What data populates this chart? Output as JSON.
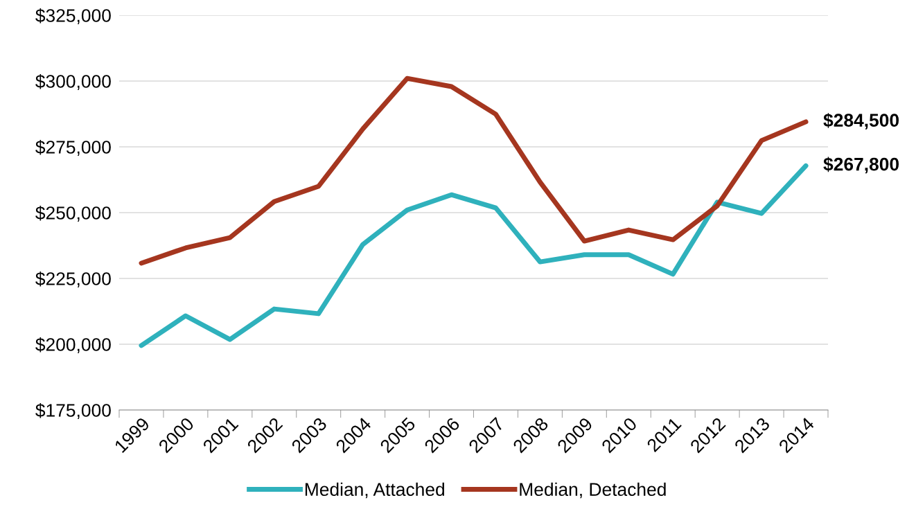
{
  "chart_data": {
    "type": "line",
    "categories": [
      "1999",
      "2000",
      "2001",
      "2002",
      "2003",
      "2004",
      "2005",
      "2006",
      "2007",
      "2008",
      "2009",
      "2010",
      "2011",
      "2012",
      "2013",
      "2014"
    ],
    "series": [
      {
        "name": "Median, Attached",
        "color": "#2fb1bc",
        "values": [
          199500,
          210800,
          201800,
          213400,
          211600,
          237900,
          251000,
          256800,
          251800,
          231300,
          234000,
          234000,
          226600,
          254000,
          249700,
          267800
        ]
      },
      {
        "name": "Median, Detached",
        "color": "#a5361f",
        "values": [
          230800,
          236600,
          240500,
          254200,
          260000,
          281800,
          301000,
          297900,
          287400,
          261600,
          239200,
          243400,
          239700,
          252600,
          277400,
          284500
        ]
      }
    ],
    "ylim": [
      175000,
      325000
    ],
    "yticks": [
      {
        "value": 175000,
        "label": "$175,000"
      },
      {
        "value": 200000,
        "label": "$200,000"
      },
      {
        "value": 225000,
        "label": "$225,000"
      },
      {
        "value": 250000,
        "label": "$250,000"
      },
      {
        "value": 275000,
        "label": "$275,000"
      },
      {
        "value": 300000,
        "label": "$300,000"
      },
      {
        "value": 325000,
        "label": "$325,000"
      }
    ],
    "grid": "y",
    "legend": "bottom",
    "marker": "none",
    "line_style": "solid",
    "annotations": [
      {
        "text": "$284,500",
        "x": "2014",
        "y": 284500
      },
      {
        "text": "$267,800",
        "x": "2014",
        "y": 267800
      }
    ]
  }
}
